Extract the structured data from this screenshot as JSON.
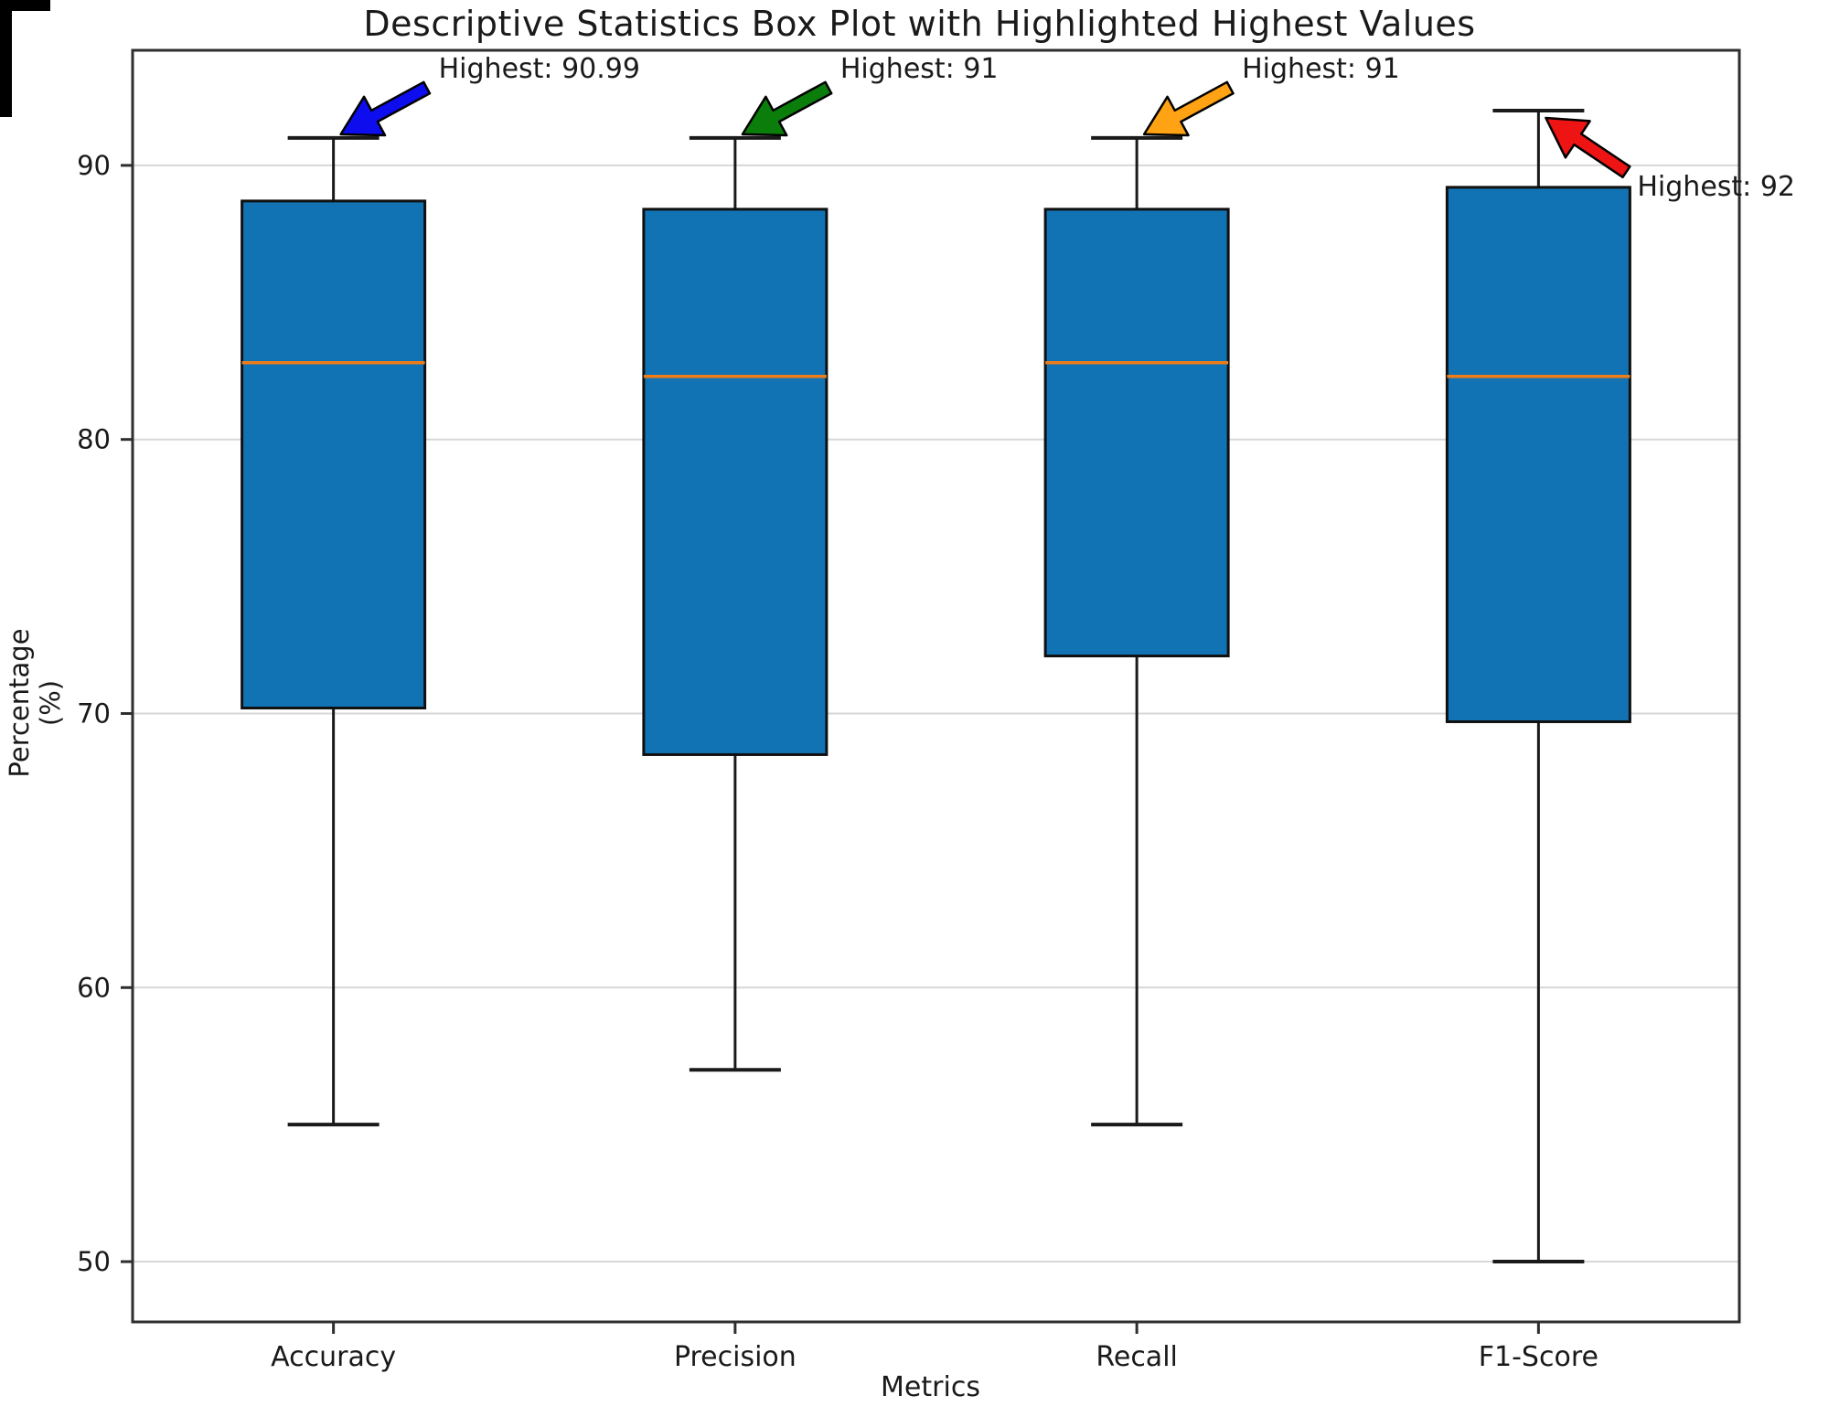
{
  "title": "Descriptive Statistics Box Plot with Highlighted Highest Values",
  "chart_data": {
    "type": "boxplot",
    "title": "Descriptive Statistics Box Plot with Highlighted Highest Values",
    "xlabel": "Metrics",
    "ylabel": "Percentage (%)",
    "categories": [
      "Accuracy",
      "Precision",
      "Recall",
      "F1-Score"
    ],
    "yticks": [
      50,
      60,
      70,
      80,
      90
    ],
    "ylim": [
      47.8,
      94.2
    ],
    "grid": true,
    "legend": "none",
    "series": [
      {
        "name": "Accuracy",
        "low": 55,
        "q1": 70.2,
        "median": 82.8,
        "q3": 88.7,
        "high": 91,
        "highest_label": "Highest: 90.99",
        "arrow_color": "#0d0dee"
      },
      {
        "name": "Precision",
        "low": 57,
        "q1": 68.5,
        "median": 82.3,
        "q3": 88.4,
        "high": 91,
        "highest_label": "Highest: 91",
        "arrow_color": "#0b7d0b"
      },
      {
        "name": "Recall",
        "low": 55,
        "q1": 72.1,
        "median": 82.8,
        "q3": 88.4,
        "high": 91,
        "highest_label": "Highest: 91",
        "arrow_color": "#ffa213"
      },
      {
        "name": "F1-Score",
        "low": 50,
        "q1": 69.7,
        "median": 82.3,
        "q3": 89.2,
        "high": 92,
        "highest_label": "Highest: 92",
        "arrow_color": "#ee1414"
      }
    ],
    "colors": {
      "box_fill": "#1273b4",
      "median": "#ee7d18",
      "whisker": "#1a1a1a",
      "box_edge": "#101010",
      "grid": "#d7d7d7",
      "spine": "#2e2e2e",
      "text": "#1a1a1a"
    }
  }
}
